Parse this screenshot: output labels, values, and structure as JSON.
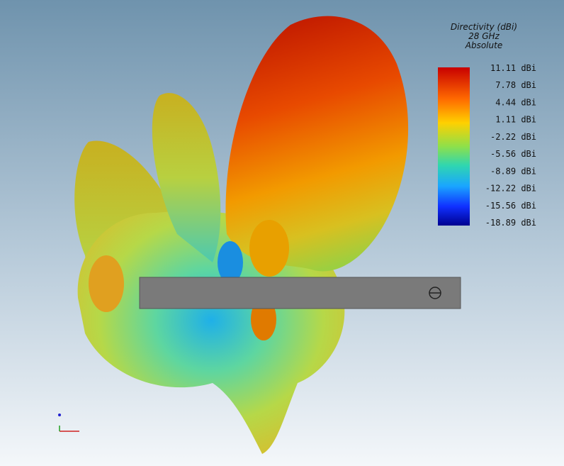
{
  "legend": {
    "title": [
      "Directivity (dBi)",
      "28 GHz",
      "Absolute"
    ],
    "labels": [
      "11.11 dBi",
      "7.78 dBi",
      "4.44 dBi",
      "1.11 dBi",
      "-2.22 dBi",
      "-5.56 dBi",
      "-8.89 dBi",
      "-12.22 dBi",
      "-15.56 dBi",
      "-18.89 dBi"
    ]
  }
}
